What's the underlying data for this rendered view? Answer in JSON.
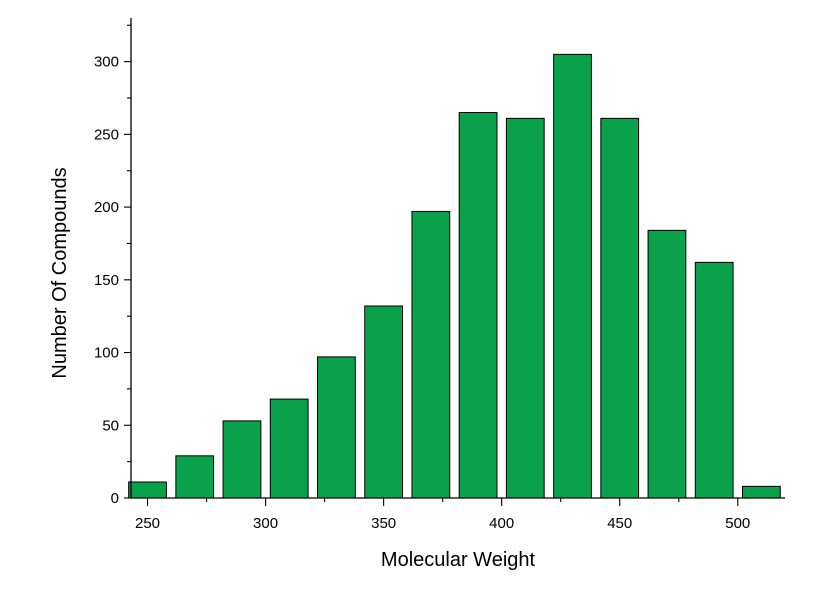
{
  "chart_data": {
    "type": "bar",
    "title": "",
    "xlabel": "Molecular Weight",
    "ylabel": "Number Of Compounds",
    "bar_color": "#0aa14b",
    "bar_edge_color": "#000000",
    "x": [
      250,
      270,
      290,
      310,
      330,
      350,
      370,
      390,
      410,
      430,
      450,
      470,
      490,
      510
    ],
    "values": [
      11,
      29,
      53,
      68,
      97,
      132,
      197,
      265,
      261,
      305,
      261,
      184,
      162,
      8
    ],
    "xlim": [
      243,
      520
    ],
    "ylim": [
      0,
      330
    ],
    "xticks": [
      250,
      300,
      350,
      400,
      450,
      500
    ],
    "yticks": [
      0,
      50,
      100,
      150,
      200,
      250,
      300
    ],
    "grid": false,
    "legend": false
  }
}
